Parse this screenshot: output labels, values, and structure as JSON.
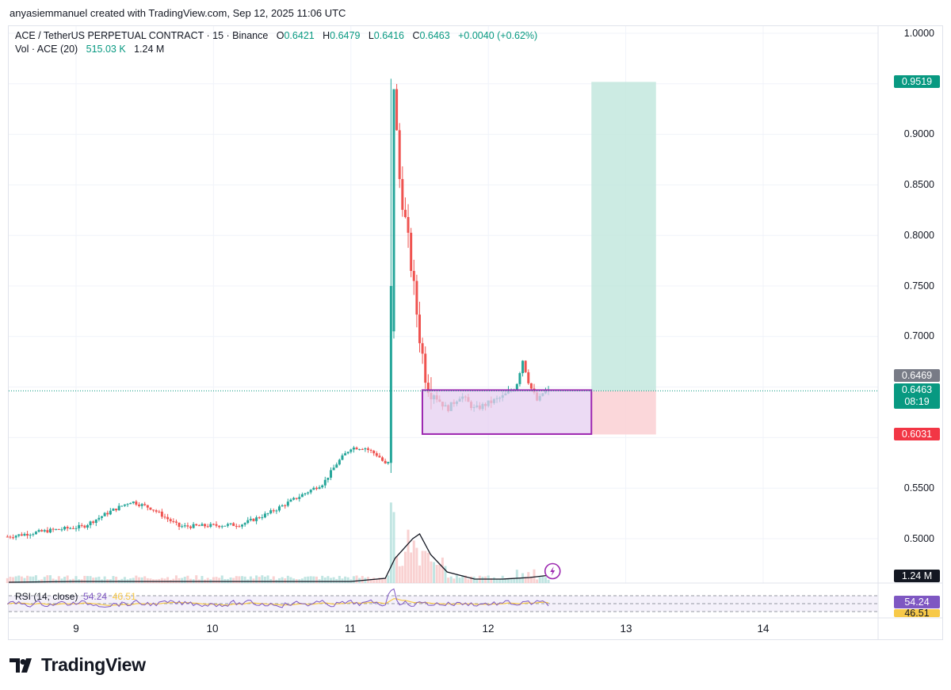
{
  "header": {
    "credit": "anyasiemmanuel created with TradingView.com, Sep 12, 2025 11:06 UTC"
  },
  "legend": {
    "symbol": "ACE / TetherUS PERPETUAL CONTRACT · 15 · Binance",
    "o_label": "O",
    "o_value": "0.6421",
    "h_label": "H",
    "h_value": "0.6479",
    "l_label": "L",
    "l_value": "0.6416",
    "c_label": "C",
    "c_value": "0.6463",
    "change": "+0.0040 (+0.62%)",
    "vol_label": "Vol · ACE (20)",
    "vol_value": "515.03 K",
    "vol_ma": "1.24 M"
  },
  "rsi": {
    "label": "RSI (14, close)",
    "value": "54.24",
    "ma_value": "46.51"
  },
  "price_tags": {
    "target": "0.9519",
    "last": "0.6469",
    "current": "0.6463",
    "countdown": "08:19",
    "stop": "0.6031",
    "volume": "1.24 M",
    "rsi": "54.24",
    "rsi_ma": "46.51"
  },
  "brand": {
    "name": "TradingView",
    "logo_icon": "tradingview-logo-icon"
  },
  "colors": {
    "up": "#089981",
    "down": "#f23645",
    "up_candle": "#26a69a",
    "down_candle": "#ef5350",
    "target_zone": "#bfe6dc",
    "stop_zone": "#fbd3d6",
    "range_box_fill": "#e6cff0",
    "range_box_stroke": "#9c27b0",
    "rsi_line": "#7e57c2",
    "rsi_ma_line": "#f7c948",
    "last_tag": "#787b86",
    "volume_ma": "#131722",
    "alert_icon": "#9c27b0"
  },
  "chart_data": {
    "type": "candlestick",
    "title": "ACE / TetherUS PERPETUAL CONTRACT · 15 · Binance",
    "y_axis": {
      "ticks": [
        "1.0000",
        "0.9000",
        "0.8500",
        "0.8000",
        "0.7500",
        "0.7000",
        "0.5500",
        "0.5000"
      ],
      "range": [
        0.46,
        1.02
      ]
    },
    "x_axis": {
      "ticks": [
        "9",
        "10",
        "11",
        "12",
        "13",
        "14"
      ],
      "range_days": [
        8.5,
        14.85
      ]
    },
    "ohlc_last": {
      "open": 0.6421,
      "high": 0.6479,
      "low": 0.6416,
      "close": 0.6463
    },
    "price_path": [
      [
        8.5,
        0.502
      ],
      [
        8.8,
        0.508
      ],
      [
        9.05,
        0.512
      ],
      [
        9.25,
        0.527
      ],
      [
        9.4,
        0.537
      ],
      [
        9.55,
        0.53
      ],
      [
        9.75,
        0.512
      ],
      [
        10.0,
        0.513
      ],
      [
        10.2,
        0.514
      ],
      [
        10.4,
        0.525
      ],
      [
        10.6,
        0.54
      ],
      [
        10.8,
        0.555
      ],
      [
        10.9,
        0.575
      ],
      [
        11.0,
        0.59
      ],
      [
        11.1,
        0.59
      ],
      [
        11.2,
        0.582
      ],
      [
        11.27,
        0.57
      ],
      [
        11.3,
        0.75
      ],
      [
        11.31,
        0.955
      ],
      [
        11.35,
        0.86
      ],
      [
        11.42,
        0.79
      ],
      [
        11.5,
        0.7
      ],
      [
        11.55,
        0.655
      ],
      [
        11.62,
        0.64
      ],
      [
        11.7,
        0.628
      ],
      [
        11.8,
        0.642
      ],
      [
        11.9,
        0.628
      ],
      [
        12.0,
        0.634
      ],
      [
        12.1,
        0.64
      ],
      [
        12.2,
        0.65
      ],
      [
        12.25,
        0.677
      ],
      [
        12.3,
        0.652
      ],
      [
        12.36,
        0.635
      ],
      [
        12.4,
        0.645
      ],
      [
        12.45,
        0.6463
      ]
    ],
    "position": {
      "entry": 0.6463,
      "target": 0.9519,
      "stop": 0.6031,
      "x_start_day": 12.75,
      "x_end_day": 13.22
    },
    "range_box": {
      "top": 0.647,
      "bottom": 0.6035,
      "x_start_day": 11.52,
      "x_end_day": 12.75
    },
    "volume": {
      "label": "Vol · ACE (20)",
      "last": "515.03 K",
      "ma": "1.24 M"
    },
    "rsi": {
      "label": "RSI (14, close)",
      "value": 54.24,
      "ma": 46.51
    }
  }
}
